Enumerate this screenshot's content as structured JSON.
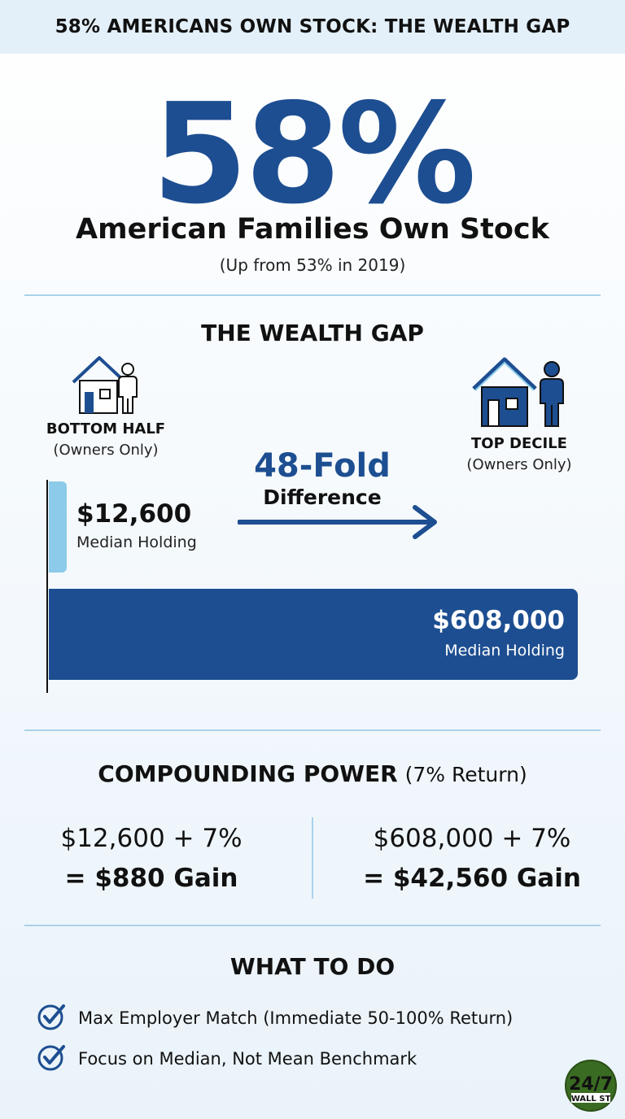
{
  "header": {
    "title": "58% AMERICANS OWN STOCK: THE WEALTH GAP"
  },
  "hero": {
    "percent": "58%",
    "headline": "American Families Own Stock",
    "note": "(Up from 53% in 2019)"
  },
  "wealth_gap": {
    "title": "THE WEALTH GAP",
    "bottom": {
      "label": "BOTTOM HALF",
      "sub": "(Owners Only)",
      "value": "$12,600",
      "value_label": "Median Holding",
      "icon": "house-person-outline-icon"
    },
    "top": {
      "label": "TOP DECILE",
      "sub": "(Owners Only)",
      "value": "$608,000",
      "value_label": "Median Holding",
      "icon": "house-person-filled-icon"
    },
    "fold": {
      "number": "48-Fold",
      "text": "Difference"
    }
  },
  "chart_data": {
    "type": "bar",
    "categories": [
      "BOTTOM HALF",
      "TOP DECILE"
    ],
    "values": [
      12600,
      608000
    ]
  },
  "compounding": {
    "title_bold": "COMPOUNDING POWER",
    "title_note": "(7% Return)",
    "left": {
      "line": "$12,600 + 7%",
      "result": "= $880 Gain"
    },
    "right": {
      "line": "$608,000 + 7%",
      "result": "= $42,560 Gain"
    }
  },
  "todo": {
    "title": "WHAT TO DO",
    "items": [
      {
        "text": "Max Employer Match (Immediate 50-100% Return)",
        "icon": "checkmark-circle-icon"
      },
      {
        "text": "Focus on Median, Not Mean Benchmark",
        "icon": "checkmark-circle-icon"
      }
    ]
  },
  "logo": {
    "line1": "24/7",
    "line2": "WALL ST"
  },
  "colors": {
    "brand_blue": "#1d4e91",
    "light_blue": "#8ccbe9",
    "divider": "#a9d2ea",
    "logo_green": "#3a6b22"
  }
}
